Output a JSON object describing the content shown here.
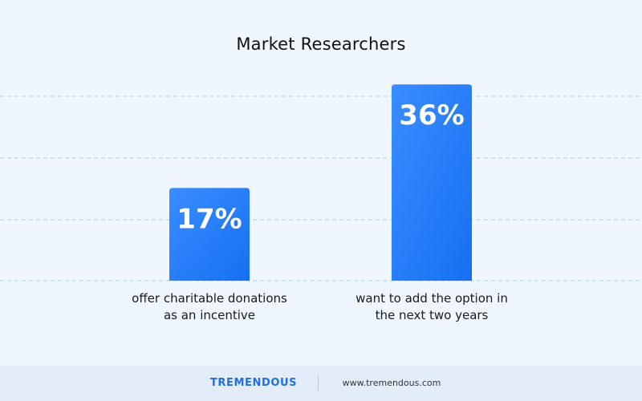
{
  "chart_data": {
    "type": "bar",
    "title": "Market Researchers",
    "categories": [
      "offer charitable donations\nas an incentive",
      "want to add the option in\nthe next two years"
    ],
    "values": [
      17,
      36
    ],
    "value_labels": [
      "17%",
      "36%"
    ],
    "ylim": [
      0,
      40
    ],
    "grid": true,
    "bar_color": "#1f7bff",
    "xlabel": "",
    "ylabel": ""
  },
  "footer": {
    "brand": "TREMENDOUS",
    "url": "www.tremendous.com"
  },
  "colors": {
    "background": "#f0f6fd",
    "footer_bg": "#e3edf9",
    "brand": "#1f6fe8",
    "gridline": "#9fd3e3"
  }
}
